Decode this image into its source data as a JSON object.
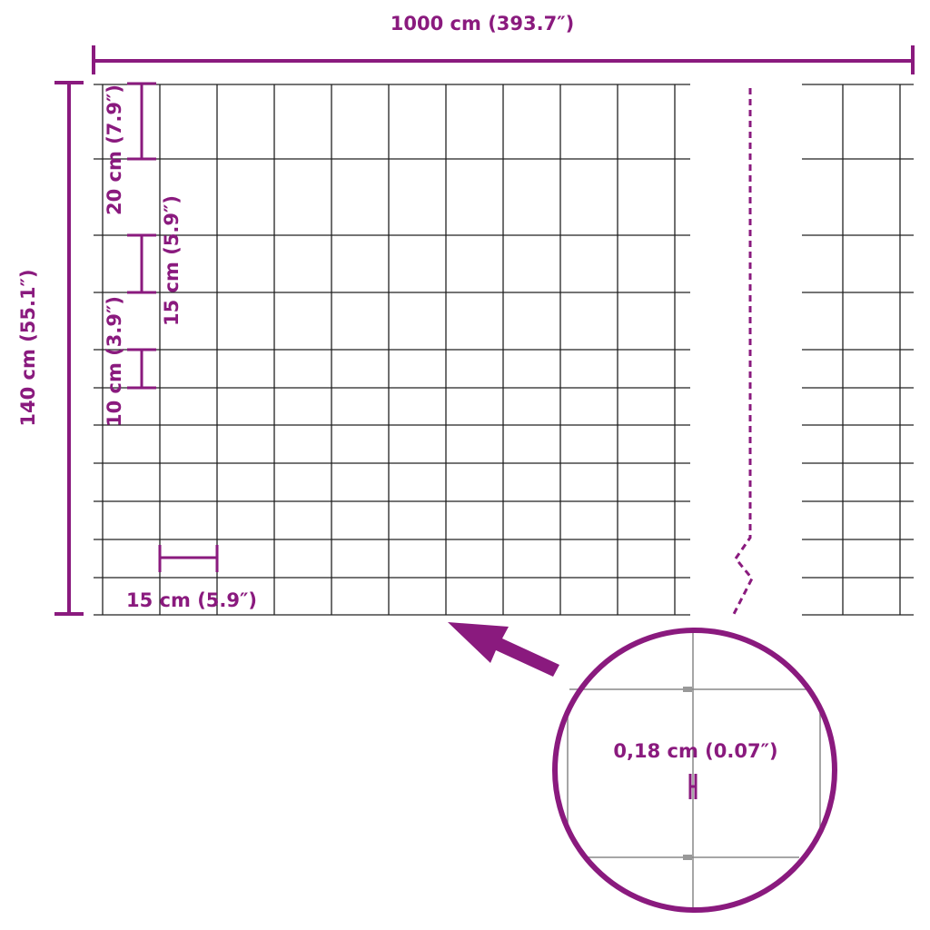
{
  "accent_color": "#8a1a7e",
  "grid_color": "#222222",
  "labels": {
    "width": "1000 cm (393.7″)",
    "height": "140 cm (55.1″)",
    "top_spacing": "20 cm (7.9″)",
    "middle_spacing": "15 cm (5.9″)",
    "bottom_spacing": "10 cm (3.9″)",
    "horizontal_spacing": "15 cm (5.9″)",
    "wire_diameter": "0,18 cm (0.07″)"
  }
}
